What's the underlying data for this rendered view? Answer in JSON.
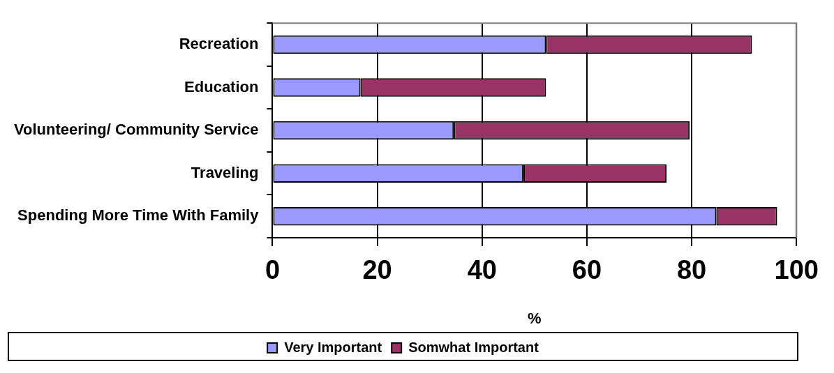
{
  "chart_data": {
    "type": "bar",
    "orientation": "horizontal",
    "stacked": true,
    "xlabel": "%",
    "categories": [
      "Recreation",
      "Education",
      "Volunteering/ Community Service",
      "Traveling",
      "Spending More Time With Family"
    ],
    "series": [
      {
        "name": "Very Important",
        "color": "#9999ff",
        "values": [
          52.2,
          16.8,
          34.6,
          47.9,
          84.7
        ]
      },
      {
        "name": "Somwhat Important",
        "color": "#993366",
        "values": [
          39.3,
          35.4,
          45.0,
          27.3,
          11.6
        ]
      }
    ],
    "xlim": [
      0,
      100
    ],
    "xticks": [
      0,
      20,
      40,
      60,
      80,
      100
    ],
    "grid": "x",
    "legend": "bottom"
  }
}
